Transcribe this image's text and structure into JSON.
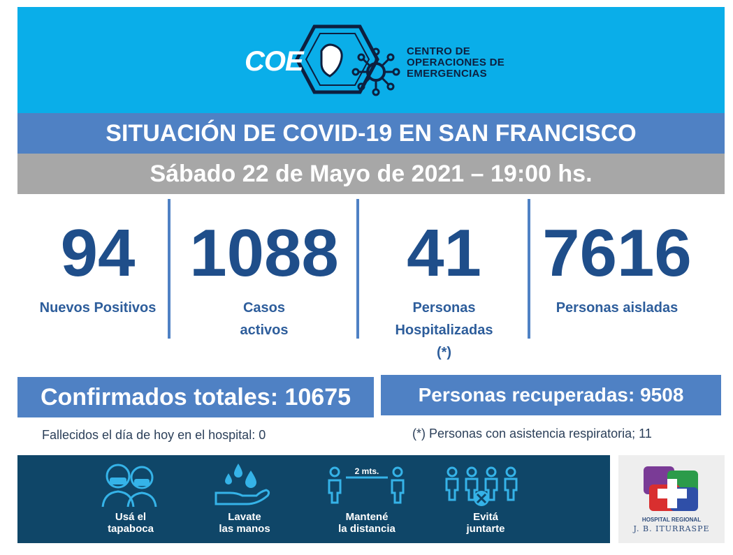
{
  "header": {
    "logo_word": "COE",
    "org_line1": "CENTRO DE",
    "org_line2": "OPERACIONES DE",
    "org_line3": "EMERGENCIAS"
  },
  "title": "SITUACIÓN DE COVID-19 EN SAN FRANCISCO",
  "date": "Sábado 22 de Mayo de 2021 – 19:00 hs.",
  "stats": [
    {
      "value": "94",
      "label_line1": "Nuevos Positivos",
      "label_line2": "",
      "label_line3": ""
    },
    {
      "value": "1088",
      "label_line1": "Casos",
      "label_line2": "activos",
      "label_line3": ""
    },
    {
      "value": "41",
      "label_line1": "Personas",
      "label_line2": "Hospitalizadas",
      "label_line3": "(*)"
    },
    {
      "value": "7616",
      "label_line1": "Personas aisladas",
      "label_line2": "",
      "label_line3": ""
    }
  ],
  "totals": {
    "confirmed": "Confirmados totales: 10675",
    "recovered": "Personas recuperadas: 9508"
  },
  "notes": {
    "deaths": "Fallecidos el día de hoy en el hospital: 0",
    "respiratory": "(*) Personas con asistencia respiratoria; 11"
  },
  "tips": [
    {
      "line1": "Usá el",
      "line2": "tapaboca",
      "icon": "masked-people-icon"
    },
    {
      "line1": "Lavate",
      "line2": "las manos",
      "icon": "hand-washing-icon"
    },
    {
      "line1": "Mantené",
      "line2": "la distancia",
      "icon": "distance-icon",
      "badge": "2 mts."
    },
    {
      "line1": "Evitá",
      "line2": "juntarte",
      "icon": "no-gathering-icon"
    }
  ],
  "hospital": {
    "name": "HOSPITAL REGIONAL",
    "sub": "J. B. ITURRASPE"
  },
  "colors": {
    "header_blue": "#0aaee9",
    "band_blue": "#4f81c4",
    "band_gray": "#a7a7a7",
    "number_blue": "#1f4e8a",
    "tips_bg": "#0f4668"
  }
}
